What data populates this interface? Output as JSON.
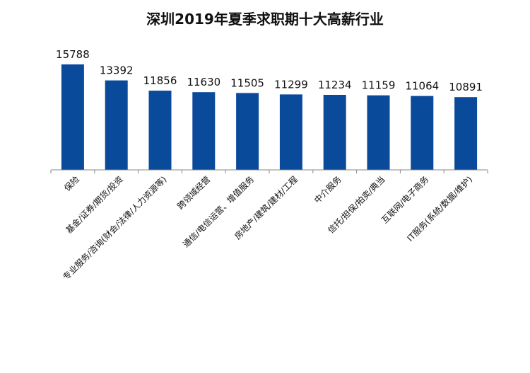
{
  "chart_data": {
    "type": "bar",
    "title": "深圳2019年夏季求职期十大高薪行业",
    "xlabel": "",
    "ylabel": "",
    "ylim": [
      0,
      16000
    ],
    "grid": false,
    "legend": "none",
    "categories": [
      "保险",
      "基金/证券/期货/投资",
      "专业服务/咨询(财会/法律/人力资源等)",
      "跨领域经营",
      "通信/电信运营、增值服务",
      "房地产/建筑/建材/工程",
      "中介服务",
      "信托/担保/拍卖/典当",
      "互联网/电子商务",
      "IT服务(系统/数据/维护)"
    ],
    "values": [
      15788,
      13392,
      11856,
      11630,
      11505,
      11299,
      11234,
      11159,
      11064,
      10891
    ],
    "colors": {
      "bar": "#0a4a9a",
      "axis": "#888888",
      "text": "#111111"
    }
  }
}
